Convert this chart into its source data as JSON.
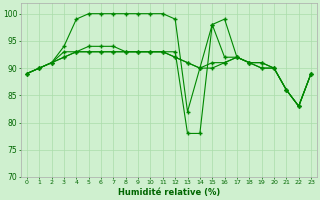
{
  "xlabel": "Humidité relative (%)",
  "background_color": "#cff0cf",
  "grid_color": "#aaddaa",
  "line_color": "#008800",
  "ylim": [
    70,
    102
  ],
  "xlim": [
    -0.5,
    23.5
  ],
  "yticks": [
    70,
    75,
    80,
    85,
    90,
    95,
    100
  ],
  "xticks": [
    0,
    1,
    2,
    3,
    4,
    5,
    6,
    7,
    8,
    9,
    10,
    11,
    12,
    13,
    14,
    15,
    16,
    17,
    18,
    19,
    20,
    21,
    22,
    23
  ],
  "series": [
    [
      89,
      90,
      91,
      94,
      99,
      100,
      100,
      100,
      100,
      100,
      100,
      100,
      99,
      82,
      90,
      98,
      99,
      92,
      91,
      91,
      90,
      86,
      83,
      89
    ],
    [
      89,
      90,
      91,
      93,
      93,
      94,
      94,
      94,
      93,
      93,
      93,
      93,
      92,
      91,
      90,
      90,
      91,
      92,
      91,
      91,
      90,
      86,
      83,
      89
    ],
    [
      89,
      90,
      91,
      92,
      93,
      93,
      93,
      93,
      93,
      93,
      93,
      93,
      92,
      91,
      90,
      91,
      91,
      92,
      91,
      90,
      90,
      86,
      83,
      89
    ],
    [
      89,
      90,
      91,
      92,
      93,
      93,
      93,
      93,
      93,
      93,
      93,
      93,
      93,
      78,
      78,
      98,
      92,
      92,
      91,
      90,
      90,
      86,
      83,
      89
    ]
  ]
}
